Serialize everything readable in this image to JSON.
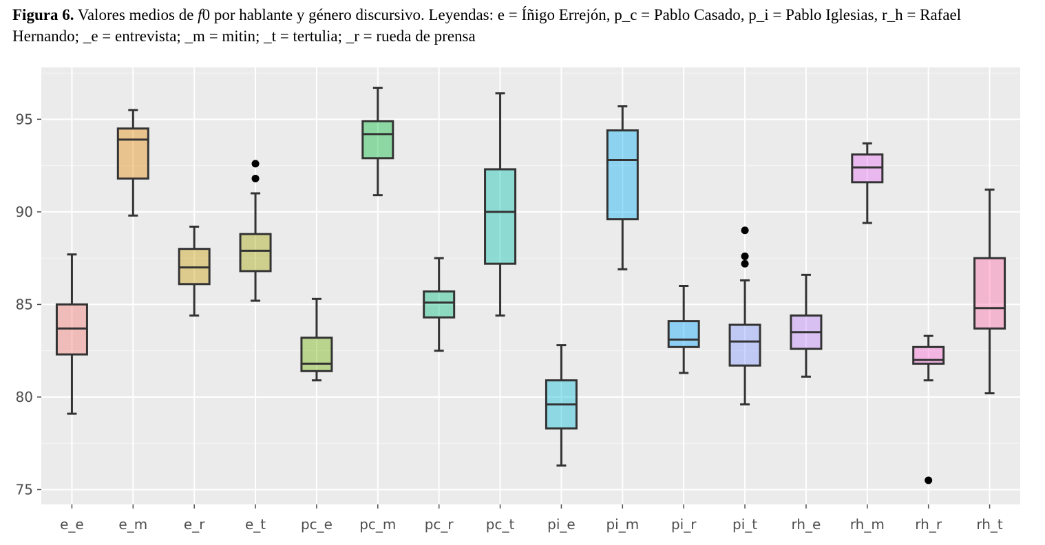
{
  "caption": {
    "label": "Figura 6.",
    "text_before_italic": " Valores medios de ",
    "italic": "f",
    "text_after_italic": "0 por hablante y género discursivo. Leyendas: e = Íñigo Errejón, p_c = Pablo Casado, p_i = Pablo Iglesias, r_h = Rafael Hernando; _e = entrevista; _m = mitin; _t = tertulia; _r = rueda de prensa"
  },
  "chart_data": {
    "type": "box",
    "title": "",
    "xlabel": "",
    "ylabel": "",
    "ylim": [
      74.2,
      97.8
    ],
    "yticks": [
      75,
      80,
      85,
      90,
      95
    ],
    "ytick_labels": [
      "75",
      "80",
      "85",
      "90",
      "95"
    ],
    "grid": true,
    "legend": "none",
    "categories": [
      "e_e",
      "e_m",
      "e_r",
      "e_t",
      "pc_e",
      "pc_m",
      "pc_r",
      "pc_t",
      "pi_e",
      "pi_m",
      "pi_r",
      "pi_t",
      "rh_e",
      "rh_m",
      "rh_r",
      "rh_t"
    ],
    "boxes": [
      {
        "category": "e_e",
        "min": 79.1,
        "q1": 82.3,
        "median": 83.7,
        "q3": 85.0,
        "max": 87.7,
        "outliers": [],
        "color": "#f8766d"
      },
      {
        "category": "e_m",
        "min": 89.8,
        "q1": 91.8,
        "median": 93.9,
        "q3": 94.5,
        "max": 95.5,
        "outliers": [],
        "color": "#e58700"
      },
      {
        "category": "e_r",
        "min": 84.4,
        "q1": 86.1,
        "median": 87.0,
        "q3": 88.0,
        "max": 89.2,
        "outliers": [],
        "color": "#c99800"
      },
      {
        "category": "e_t",
        "min": 85.2,
        "q1": 86.8,
        "median": 87.9,
        "q3": 88.8,
        "max": 91.0,
        "outliers": [
          91.8,
          92.6
        ],
        "color": "#a3a500"
      },
      {
        "category": "pc_e",
        "min": 80.9,
        "q1": 81.4,
        "median": 81.8,
        "q3": 83.2,
        "max": 85.3,
        "outliers": [],
        "color": "#6bb100"
      },
      {
        "category": "pc_m",
        "min": 90.9,
        "q1": 92.9,
        "median": 94.2,
        "q3": 94.9,
        "max": 96.7,
        "outliers": [],
        "color": "#00ba38"
      },
      {
        "category": "pc_r",
        "min": 82.5,
        "q1": 84.3,
        "median": 85.1,
        "q3": 85.7,
        "max": 87.5,
        "outliers": [],
        "color": "#00bf7d"
      },
      {
        "category": "pc_t",
        "min": 84.4,
        "q1": 87.2,
        "median": 90.0,
        "q3": 92.3,
        "max": 96.4,
        "outliers": [],
        "color": "#00c0af"
      },
      {
        "category": "pi_e",
        "min": 76.3,
        "q1": 78.3,
        "median": 79.6,
        "q3": 80.9,
        "max": 82.8,
        "outliers": [],
        "color": "#00bcd8"
      },
      {
        "category": "pi_m",
        "min": 86.9,
        "q1": 89.6,
        "median": 92.8,
        "q3": 94.4,
        "max": 95.7,
        "outliers": [],
        "color": "#00b0f6"
      },
      {
        "category": "pi_r",
        "min": 81.3,
        "q1": 82.7,
        "median": 83.1,
        "q3": 84.1,
        "max": 86.0,
        "outliers": [],
        "color": "#00a5ff"
      },
      {
        "category": "pi_t",
        "min": 79.6,
        "q1": 81.7,
        "median": 83.0,
        "q3": 83.9,
        "max": 86.3,
        "outliers": [
          87.2,
          87.6,
          89.0
        ],
        "color": "#7f96ff"
      },
      {
        "category": "rh_e",
        "min": 81.1,
        "q1": 82.6,
        "median": 83.5,
        "q3": 84.4,
        "max": 86.6,
        "outliers": [],
        "color": "#bf80ff"
      },
      {
        "category": "rh_m",
        "min": 89.4,
        "q1": 91.6,
        "median": 92.4,
        "q3": 93.1,
        "max": 93.7,
        "outliers": [],
        "color": "#e76bf3"
      },
      {
        "category": "rh_r",
        "min": 80.9,
        "q1": 81.8,
        "median": 82.0,
        "q3": 82.7,
        "max": 83.3,
        "outliers": [
          75.5
        ],
        "color": "#fd61d1"
      },
      {
        "category": "rh_t",
        "min": 80.2,
        "q1": 83.7,
        "median": 84.8,
        "q3": 87.5,
        "max": 91.2,
        "outliers": [],
        "color": "#ff67a4"
      }
    ]
  }
}
